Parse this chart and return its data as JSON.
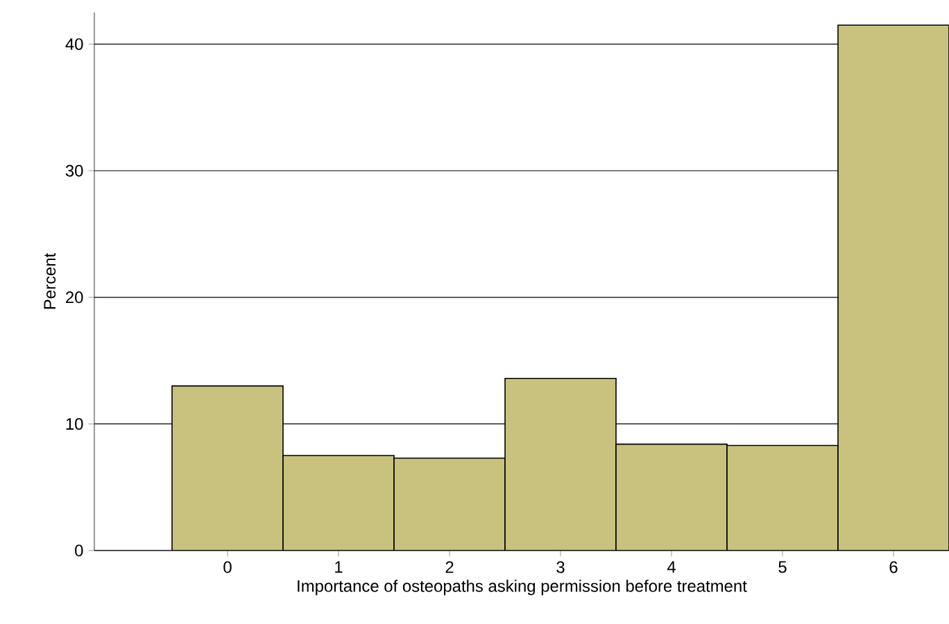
{
  "chart_data": {
    "type": "histogram",
    "xlabel": "Importance of osteopaths asking permission before treatment",
    "ylabel": "Percent",
    "bins": [
      -0.5,
      0.5,
      1.5,
      2.5,
      3.5,
      4.5,
      5.5,
      6.5
    ],
    "values": [
      13.0,
      7.5,
      7.3,
      13.6,
      8.4,
      8.3,
      41.5
    ],
    "color": "#c9c27f",
    "xlim": [
      -1.2,
      6.5
    ],
    "ylim": [
      0,
      42.5
    ],
    "xticks": [
      0,
      1,
      2,
      3,
      4,
      5,
      6
    ],
    "yticks": [
      0,
      10,
      20,
      30,
      40
    ],
    "grid": "y"
  }
}
